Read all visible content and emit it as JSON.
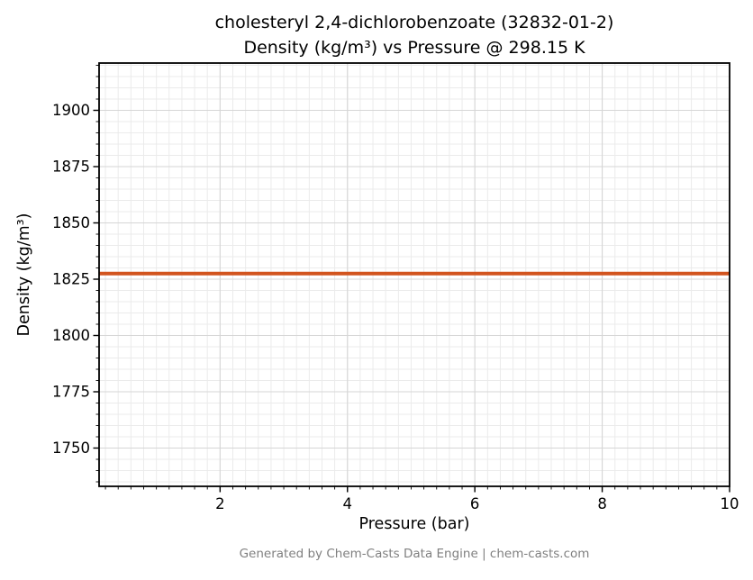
{
  "header": {
    "title_line1": "cholesteryl 2,4-dichlorobenzoate (32832-01-2)",
    "title_line2": "Density (kg/m³) vs Pressure @ 298.15 K"
  },
  "footer": {
    "text": "Generated by Chem-Casts Data Engine | chem-casts.com"
  },
  "chart_data": {
    "type": "line",
    "title": "cholesteryl 2,4-dichlorobenzoate (32832-01-2) — Density (kg/m³) vs Pressure @ 298.15 K",
    "xlabel": "Pressure (bar)",
    "ylabel": "Density (kg/m³)",
    "xlim": [
      0.1,
      10
    ],
    "ylim": [
      1733,
      1921
    ],
    "xticks": [
      2,
      4,
      6,
      8,
      10
    ],
    "yticks": [
      1750,
      1775,
      1800,
      1825,
      1850,
      1875,
      1900
    ],
    "x_minor_step": 0.2,
    "y_minor_step": 5,
    "grid": {
      "major": true,
      "minor": true,
      "major_color": "#d6d6d6",
      "minor_color": "#ebebeb"
    },
    "legend": "none",
    "series": [
      {
        "name": "Density",
        "color": "#d2541e",
        "linewidth": 4,
        "x": [
          0.1,
          1,
          2,
          3,
          4,
          5,
          6,
          7,
          8,
          9,
          10
        ],
        "values": [
          1827.5,
          1827.5,
          1827.5,
          1827.5,
          1827.5,
          1827.5,
          1827.5,
          1827.5,
          1827.5,
          1827.5,
          1827.5
        ]
      }
    ]
  }
}
